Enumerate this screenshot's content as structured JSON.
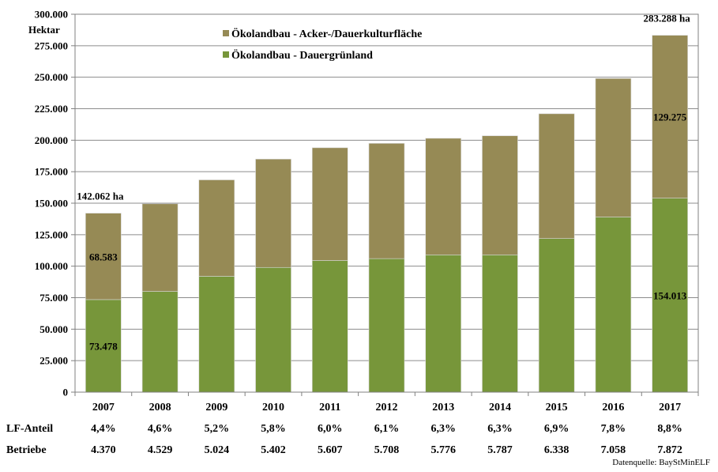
{
  "chart_data": {
    "type": "bar",
    "stacked": true,
    "ylabel": "Hektar",
    "ylim": [
      0,
      300000
    ],
    "ytick_step": 25000,
    "ytick_labels": [
      "0",
      "25.000",
      "50.000",
      "75.000",
      "100.000",
      "125.000",
      "150.000",
      "175.000",
      "200.000",
      "225.000",
      "250.000",
      "275.000",
      "300.000"
    ],
    "categories": [
      "2007",
      "2008",
      "2009",
      "2010",
      "2011",
      "2012",
      "2013",
      "2014",
      "2015",
      "2016",
      "2017"
    ],
    "series": [
      {
        "name": "Ökolandbau - Dauergrünland",
        "color": "#77963a",
        "values": [
          73478,
          80000,
          92000,
          99000,
          104500,
          106000,
          109000,
          109000,
          122000,
          139000,
          154013
        ]
      },
      {
        "name": "Ökolandbau - Acker-/Dauerkulturfläche",
        "color": "#968a55",
        "values": [
          68583,
          69500,
          76500,
          86000,
          89500,
          91500,
          92500,
          94500,
          99000,
          110000,
          129275
        ]
      }
    ],
    "legend": {
      "placement": "top-center",
      "order": [
        "Ökolandbau - Acker-/Dauerkulturfläche",
        "Ökolandbau - Dauergrünland"
      ]
    },
    "grid": true,
    "annotations": [
      {
        "category": "2007",
        "text": "142.062 ha"
      },
      {
        "category": "2017",
        "text": "283.288 ha"
      }
    ],
    "segment_labels": [
      {
        "category": "2007",
        "series": "Ökolandbau - Dauergrünland",
        "text": "73.478"
      },
      {
        "category": "2007",
        "series": "Ökolandbau - Acker-/Dauerkulturfläche",
        "text": "68.583"
      },
      {
        "category": "2017",
        "series": "Ökolandbau - Dauergrünland",
        "text": "154.013"
      },
      {
        "category": "2017",
        "series": "Ökolandbau - Acker-/Dauerkulturfläche",
        "text": "129.275"
      }
    ],
    "table_rows": [
      {
        "label": "LF-Anteil",
        "values": [
          "4,4%",
          "4,6%",
          "5,2%",
          "5,8%",
          "6,0%",
          "6,1%",
          "6,3%",
          "6,3%",
          "6,9%",
          "7,8%",
          "8,8%"
        ]
      },
      {
        "label": "Betriebe",
        "values": [
          "4.370",
          "4.529",
          "5.024",
          "5.402",
          "5.607",
          "5.708",
          "5.776",
          "5.787",
          "6.338",
          "7.058",
          "7.872"
        ]
      }
    ],
    "source": "Datenquelle: BayStMinELF"
  }
}
